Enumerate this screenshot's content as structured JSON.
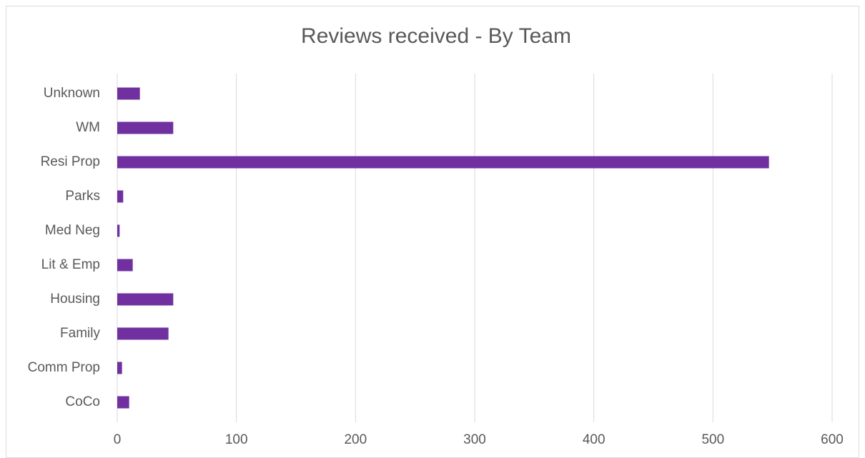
{
  "chart_data": {
    "type": "barh",
    "title": "Reviews received - By Team",
    "categories": [
      "CoCo",
      "Comm Prop",
      "Family",
      "Housing",
      "Lit & Emp",
      "Med Neg",
      "Parks",
      "Resi Prop",
      "WM",
      "Unknown"
    ],
    "values": [
      10,
      4,
      43,
      47,
      13,
      2,
      5,
      547,
      47,
      19
    ],
    "color": "#7030a0",
    "xlim": [
      0,
      600
    ],
    "xticks": [
      0,
      100,
      200,
      300,
      400,
      500,
      600
    ],
    "grid": true
  }
}
